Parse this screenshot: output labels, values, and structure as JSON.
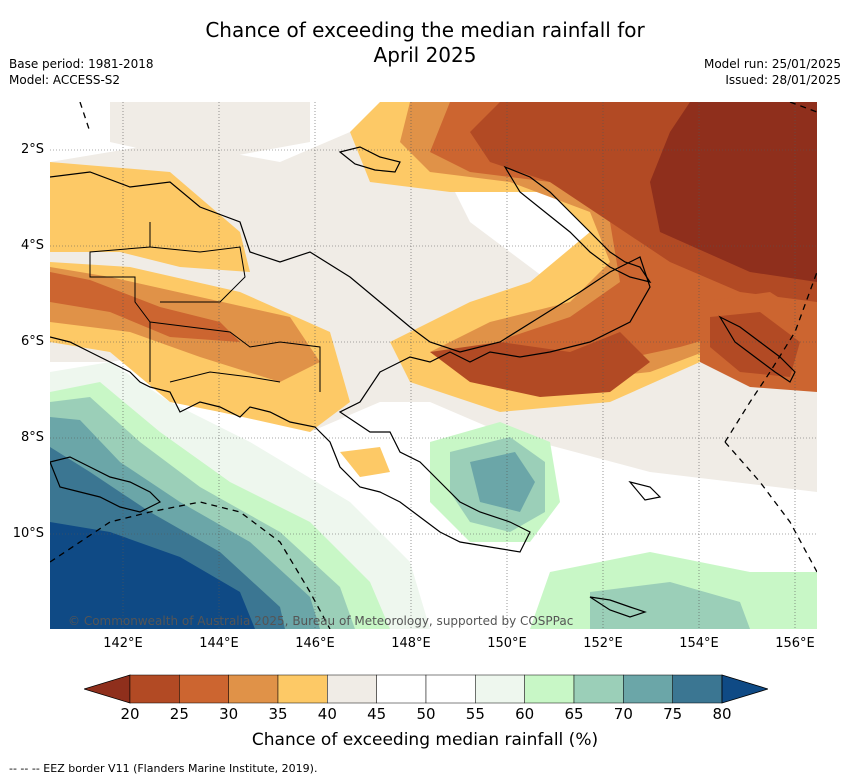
{
  "title_line1": "Chance of exceeding the median rainfall for",
  "title_line2": "April 2025",
  "meta": {
    "base_period": "Base period: 1981-2018",
    "model": "Model: ACCESS-S2",
    "model_run": "Model run: 25/01/2025",
    "issued": "Issued: 28/01/2025"
  },
  "credit": "© Commonwealth of Australia 2025, Bureau of Meteorology, supported by COSPPac",
  "lat_labels": [
    "2°S",
    "4°S",
    "6°S",
    "8°S",
    "10°S"
  ],
  "lon_labels": [
    "142°E",
    "144°E",
    "146°E",
    "148°E",
    "150°E",
    "152°E",
    "154°E",
    "156°E"
  ],
  "colorbar": {
    "ticks": [
      "20",
      "25",
      "30",
      "35",
      "40",
      "45",
      "50",
      "55",
      "60",
      "65",
      "70",
      "75",
      "80"
    ],
    "colors": [
      "#8f2f1c",
      "#b24a24",
      "#cc6530",
      "#e09248",
      "#fdc966",
      "#f0ece6",
      "#ffffff",
      "#ffffff",
      "#eef7ee",
      "#c8f7c6",
      "#9bcfb8",
      "#6ba6a8",
      "#3b7692",
      "#0f4a85"
    ],
    "title": "Chance of exceeding median rainfall (%)"
  },
  "footnote": "--  --  -- EEZ border V11 (Flanders Marine Institute, 2019)."
}
